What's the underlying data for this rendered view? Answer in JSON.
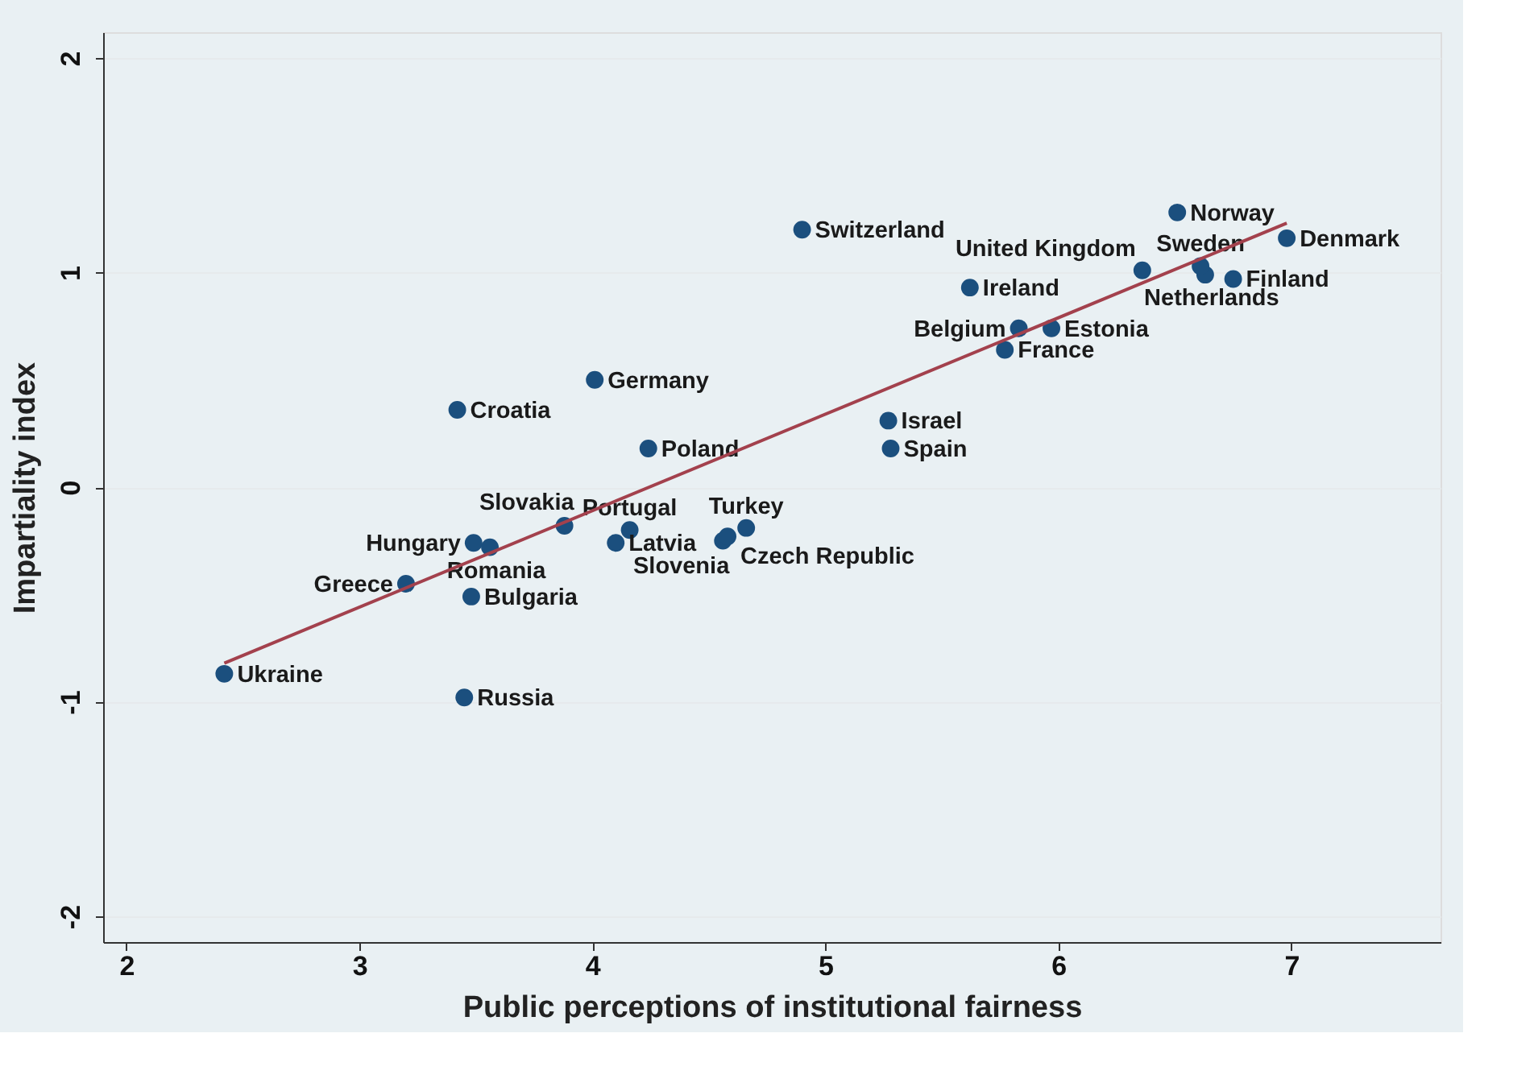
{
  "chart_data": {
    "type": "scatter",
    "xlabel": "Public perceptions of institutional fairness",
    "ylabel": "Impartiality index",
    "xlim": [
      1.9,
      7.64
    ],
    "xticks": [
      2,
      3,
      4,
      5,
      6,
      7
    ],
    "ylim": [
      -2.12,
      2.12
    ],
    "yticks": [
      -2,
      -1,
      0,
      1,
      2
    ],
    "grid": "y",
    "series": [
      {
        "color": "#1b4f7e",
        "marker": "circle",
        "x": [
          2.42,
          3.45,
          3.2,
          3.48,
          3.49,
          3.56,
          3.88,
          4.1,
          4.16,
          4.56,
          4.58,
          4.66,
          3.42,
          4.01,
          4.24,
          5.27,
          5.28,
          4.9,
          5.62,
          5.83,
          5.97,
          5.77,
          6.36,
          6.63,
          6.61,
          6.51,
          6.75,
          6.98
        ],
        "values": [
          -0.87,
          -0.98,
          -0.45,
          -0.51,
          -0.26,
          -0.28,
          -0.18,
          -0.26,
          -0.2,
          -0.25,
          -0.23,
          -0.19,
          0.36,
          0.5,
          0.18,
          0.31,
          0.18,
          1.2,
          0.93,
          0.74,
          0.74,
          0.64,
          1.01,
          0.99,
          1.03,
          1.28,
          0.97,
          1.16
        ],
        "value_labels": [
          "Ukraine",
          "Russia",
          "Greece",
          "Bulgaria",
          "Hungary",
          "Romania",
          "Slovakia",
          "Latvia",
          "Portugal",
          "Slovenia",
          "Czech Republic",
          "Turkey",
          "Croatia",
          "Germany",
          "Poland",
          "Israel",
          "Spain",
          "Switzerland",
          "Ireland",
          "Belgium",
          "Estonia",
          "France",
          "United Kingdom",
          "Netherlands",
          "Sweden",
          "Norway",
          "Finland",
          "Denmark"
        ]
      },
      {
        "type": "line",
        "marker": "none",
        "color": "#a3414d",
        "x": [
          2.42,
          6.98
        ],
        "values": [
          -0.82,
          1.23
        ]
      }
    ]
  }
}
